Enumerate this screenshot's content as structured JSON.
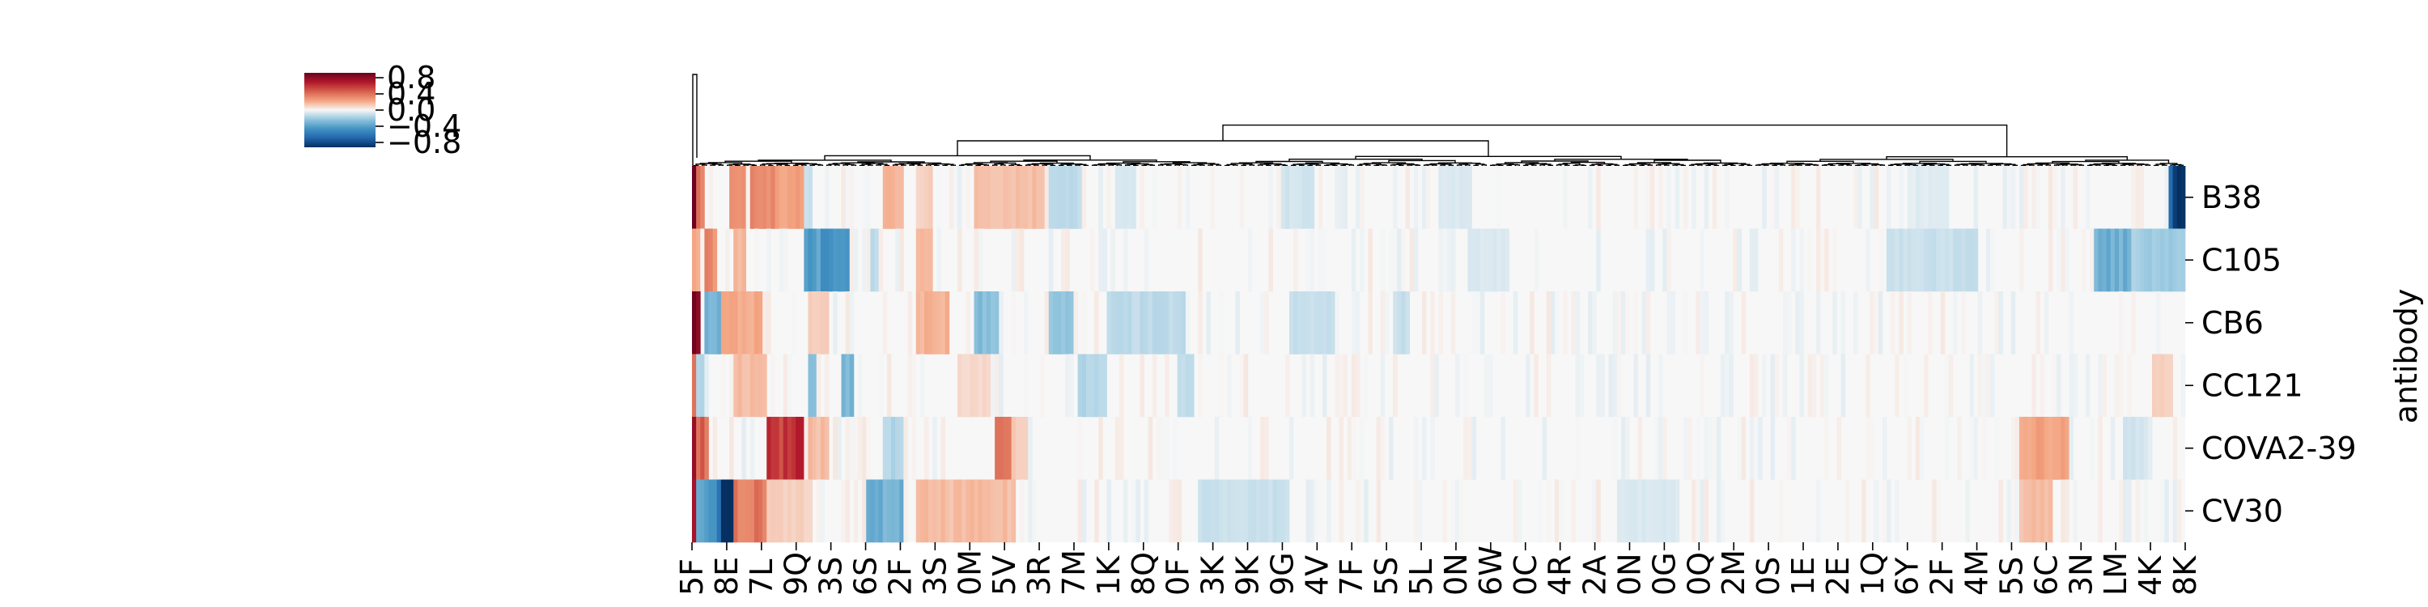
{
  "chart_data": {
    "type": "heatmap",
    "title": "",
    "ylabel": "antibody",
    "rows": [
      "B38",
      "C105",
      "CB6",
      "CC121",
      "COVA2-39",
      "CV30"
    ],
    "xtick_labels": [
      "5F",
      "8E",
      "7L",
      "9Q",
      "3S",
      "6S",
      "2F",
      "3S",
      "0M",
      "5V",
      "3R",
      "7M",
      "1K",
      "8Q",
      "0F",
      "3K",
      "9K",
      "9G",
      "4V",
      "7F",
      "5S",
      "5L",
      "0N",
      "6W",
      "0C",
      "4R",
      "2A",
      "0N",
      "0G",
      "0Q",
      "2M",
      "0S",
      "1E",
      "2E",
      "1Q",
      "6Y",
      "2F",
      "4M",
      "5S",
      "6C",
      "3N",
      "LM",
      "4K",
      "8K"
    ],
    "colorbar": {
      "colormap": "RdBu_r",
      "range": [
        -0.8,
        0.8
      ],
      "tick_labels": [
        "0.8",
        "0.4",
        "0.0",
        "−0.4",
        "−0.8"
      ]
    },
    "dendrogram": "column",
    "n_columns": 360,
    "row_features": [
      [
        {
          "from": 0.0,
          "to": 0.003,
          "v": 0.75
        },
        {
          "from": 0.003,
          "to": 0.006,
          "v": 0.35
        },
        {
          "from": 0.025,
          "to": 0.035,
          "v": 0.28
        },
        {
          "from": 0.04,
          "to": 0.055,
          "v": 0.3
        },
        {
          "from": 0.058,
          "to": 0.075,
          "v": 0.22
        },
        {
          "from": 0.075,
          "to": 0.08,
          "v": -0.1
        },
        {
          "from": 0.13,
          "to": 0.14,
          "v": 0.18
        },
        {
          "from": 0.15,
          "to": 0.16,
          "v": 0.1
        },
        {
          "from": 0.19,
          "to": 0.235,
          "v": 0.15
        },
        {
          "from": 0.24,
          "to": 0.25,
          "v": 0.1
        },
        {
          "from": 0.24,
          "to": 0.26,
          "v": -0.12
        },
        {
          "from": 0.285,
          "to": 0.295,
          "v": -0.06
        },
        {
          "from": 0.395,
          "to": 0.415,
          "v": -0.08
        },
        {
          "from": 0.5,
          "to": 0.52,
          "v": -0.06
        },
        {
          "from": 0.82,
          "to": 0.84,
          "v": -0.05
        },
        {
          "from": 0.99,
          "to": 0.998,
          "v": -0.75
        }
      ],
      [
        {
          "from": 0.0,
          "to": 0.004,
          "v": 0.2
        },
        {
          "from": 0.01,
          "to": 0.014,
          "v": 0.3
        },
        {
          "from": 0.03,
          "to": 0.035,
          "v": 0.18
        },
        {
          "from": 0.075,
          "to": 0.105,
          "v": -0.4
        },
        {
          "from": 0.12,
          "to": 0.125,
          "v": -0.12
        },
        {
          "from": 0.15,
          "to": 0.16,
          "v": 0.15
        },
        {
          "from": 0.52,
          "to": 0.545,
          "v": -0.06
        },
        {
          "from": 0.8,
          "to": 0.86,
          "v": -0.1
        },
        {
          "from": 0.94,
          "to": 0.965,
          "v": -0.3
        },
        {
          "from": 0.965,
          "to": 1.0,
          "v": -0.18
        }
      ],
      [
        {
          "from": 0.0,
          "to": 0.005,
          "v": 0.8
        },
        {
          "from": 0.01,
          "to": 0.02,
          "v": -0.3
        },
        {
          "from": 0.02,
          "to": 0.045,
          "v": 0.2
        },
        {
          "from": 0.08,
          "to": 0.09,
          "v": 0.1
        },
        {
          "from": 0.15,
          "to": 0.17,
          "v": 0.18
        },
        {
          "from": 0.19,
          "to": 0.205,
          "v": -0.25
        },
        {
          "from": 0.24,
          "to": 0.255,
          "v": -0.2
        },
        {
          "from": 0.28,
          "to": 0.33,
          "v": -0.12
        },
        {
          "from": 0.4,
          "to": 0.43,
          "v": -0.1
        },
        {
          "from": 0.47,
          "to": 0.48,
          "v": -0.1
        }
      ],
      [
        {
          "from": 0.0,
          "to": 0.004,
          "v": 0.35
        },
        {
          "from": 0.004,
          "to": 0.008,
          "v": -0.15
        },
        {
          "from": 0.03,
          "to": 0.05,
          "v": 0.15
        },
        {
          "from": 0.078,
          "to": 0.082,
          "v": -0.25
        },
        {
          "from": 0.1,
          "to": 0.108,
          "v": -0.3
        },
        {
          "from": 0.18,
          "to": 0.2,
          "v": 0.08
        },
        {
          "from": 0.26,
          "to": 0.275,
          "v": -0.15
        },
        {
          "from": 0.325,
          "to": 0.335,
          "v": -0.12
        },
        {
          "from": 0.98,
          "to": 0.99,
          "v": 0.1
        }
      ],
      [
        {
          "from": 0.0,
          "to": 0.004,
          "v": 0.85
        },
        {
          "from": 0.004,
          "to": 0.01,
          "v": 0.4
        },
        {
          "from": 0.052,
          "to": 0.075,
          "v": 0.55
        },
        {
          "from": 0.08,
          "to": 0.09,
          "v": 0.15
        },
        {
          "from": 0.13,
          "to": 0.14,
          "v": -0.15
        },
        {
          "from": 0.205,
          "to": 0.215,
          "v": 0.35
        },
        {
          "from": 0.215,
          "to": 0.225,
          "v": 0.12
        },
        {
          "from": 0.89,
          "to": 0.92,
          "v": 0.22
        },
        {
          "from": 0.96,
          "to": 0.975,
          "v": -0.08
        }
      ],
      [
        {
          "from": 0.0,
          "to": 0.004,
          "v": 0.85
        },
        {
          "from": 0.004,
          "to": 0.01,
          "v": -0.4
        },
        {
          "from": 0.012,
          "to": 0.02,
          "v": -0.5
        },
        {
          "from": 0.02,
          "to": 0.03,
          "v": -0.85
        },
        {
          "from": 0.03,
          "to": 0.05,
          "v": 0.35
        },
        {
          "from": 0.05,
          "to": 0.08,
          "v": 0.1
        },
        {
          "from": 0.118,
          "to": 0.14,
          "v": -0.3
        },
        {
          "from": 0.15,
          "to": 0.215,
          "v": 0.15
        },
        {
          "from": 0.34,
          "to": 0.4,
          "v": -0.1
        },
        {
          "from": 0.62,
          "to": 0.66,
          "v": -0.06
        },
        {
          "from": 0.89,
          "to": 0.91,
          "v": 0.15
        }
      ]
    ]
  }
}
